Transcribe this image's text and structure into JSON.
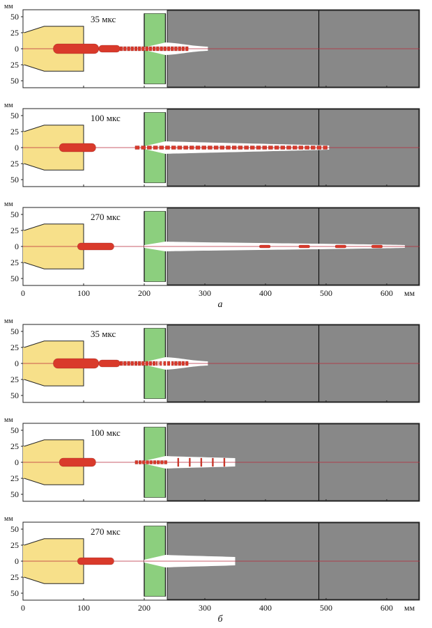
{
  "units": {
    "y": "мм",
    "x": "мм"
  },
  "y_ticks": [
    "50",
    "25",
    "0",
    "25",
    "50"
  ],
  "x_ticks": [
    "0",
    "100",
    "200",
    "300",
    "400",
    "500",
    "600"
  ],
  "colors": {
    "nozzle": "#f7e08a",
    "diaphragm": "#8ccf7e",
    "chamber": "#888888",
    "axis_line": "#b8283a",
    "particles": "#d93a2b",
    "cavity": "#ffffff"
  },
  "groups": [
    {
      "label": "а",
      "panels": [
        {
          "time_label": "35 мкс"
        },
        {
          "time_label": "100 мкс"
        },
        {
          "time_label": "270 мкс"
        }
      ]
    },
    {
      "label": "б",
      "panels": [
        {
          "time_label": "35 мкс"
        },
        {
          "time_label": "100 мкс"
        },
        {
          "time_label": "270 мкс"
        }
      ]
    }
  ]
}
